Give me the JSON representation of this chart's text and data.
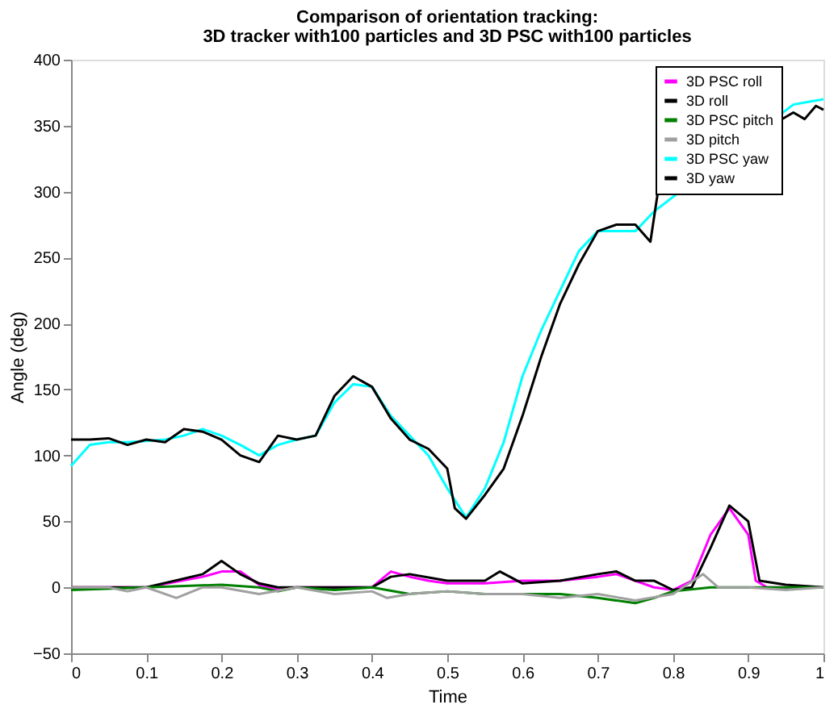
{
  "chart_data": {
    "type": "line",
    "title": "Comparison of orientation tracking:",
    "subtitle": "3D tracker with100 particles and 3D PSC with100 particles",
    "xlabel": "Time",
    "ylabel": "Angle (deg)",
    "xlim": [
      0,
      1
    ],
    "xticks": [
      0,
      0.1,
      0.2,
      0.3,
      0.4,
      0.5,
      0.6,
      0.7,
      0.8,
      0.9,
      1
    ],
    "ylim": [
      -50,
      400
    ],
    "yticks": [
      -50,
      0,
      50,
      100,
      150,
      200,
      250,
      300,
      350,
      400
    ],
    "grid": false,
    "legend": "top right",
    "line_style": "solid",
    "marker": "none",
    "series": [
      {
        "name": "3D PSC roll",
        "color": "#ff00ff",
        "x": [
          0,
          0.1,
          0.175,
          0.2,
          0.225,
          0.25,
          0.275,
          0.3,
          0.4,
          0.425,
          0.45,
          0.475,
          0.5,
          0.55,
          0.6,
          0.65,
          0.7,
          0.725,
          0.75,
          0.775,
          0.8,
          0.825,
          0.85,
          0.875,
          0.9,
          0.91,
          0.925,
          1
        ],
        "values": [
          0,
          0,
          8,
          12,
          12,
          2,
          -2,
          0,
          0,
          12,
          8,
          5,
          3,
          3,
          5,
          5,
          8,
          10,
          5,
          0,
          -2,
          5,
          40,
          60,
          40,
          5,
          0,
          0
        ]
      },
      {
        "name": "3D roll",
        "color": "#000000",
        "x": [
          0,
          0.1,
          0.175,
          0.2,
          0.225,
          0.25,
          0.275,
          0.3,
          0.4,
          0.425,
          0.45,
          0.5,
          0.55,
          0.57,
          0.6,
          0.65,
          0.7,
          0.725,
          0.75,
          0.775,
          0.8,
          0.825,
          0.85,
          0.875,
          0.9,
          0.915,
          0.95,
          1
        ],
        "values": [
          0,
          0,
          10,
          20,
          10,
          3,
          0,
          0,
          0,
          8,
          10,
          5,
          5,
          12,
          3,
          5,
          10,
          12,
          5,
          5,
          -2,
          0,
          30,
          62,
          50,
          5,
          2,
          0
        ]
      },
      {
        "name": "3D PSC pitch",
        "color": "#008000",
        "x": [
          0,
          0.1,
          0.2,
          0.25,
          0.275,
          0.3,
          0.35,
          0.4,
          0.45,
          0.5,
          0.55,
          0.6,
          0.65,
          0.7,
          0.75,
          0.775,
          0.8,
          0.85,
          0.9,
          1
        ],
        "values": [
          -2,
          0,
          2,
          0,
          -3,
          0,
          -2,
          0,
          -5,
          -3,
          -5,
          -5,
          -5,
          -8,
          -12,
          -8,
          -3,
          0,
          0,
          0
        ]
      },
      {
        "name": "3D pitch",
        "color": "#a0a0a0",
        "x": [
          0,
          0.05,
          0.075,
          0.1,
          0.14,
          0.175,
          0.2,
          0.25,
          0.3,
          0.35,
          0.4,
          0.42,
          0.45,
          0.5,
          0.55,
          0.6,
          0.65,
          0.7,
          0.75,
          0.8,
          0.84,
          0.86,
          0.9,
          0.95,
          1
        ],
        "values": [
          0,
          0,
          -3,
          0,
          -8,
          0,
          0,
          -5,
          0,
          -5,
          -3,
          -8,
          -5,
          -3,
          -5,
          -5,
          -8,
          -5,
          -10,
          -5,
          10,
          0,
          0,
          -2,
          0
        ]
      },
      {
        "name": "3D PSC yaw",
        "color": "#00ffff",
        "x": [
          0,
          0.025,
          0.05,
          0.075,
          0.1,
          0.125,
          0.15,
          0.175,
          0.2,
          0.225,
          0.25,
          0.275,
          0.3,
          0.325,
          0.35,
          0.375,
          0.4,
          0.425,
          0.45,
          0.475,
          0.5,
          0.525,
          0.55,
          0.575,
          0.6,
          0.625,
          0.65,
          0.675,
          0.7,
          0.725,
          0.75,
          0.775,
          0.96,
          0.98,
          1
        ],
        "values": [
          92,
          108,
          110,
          110,
          111,
          112,
          115,
          120,
          115,
          108,
          100,
          108,
          112,
          115,
          140,
          154,
          152,
          130,
          115,
          100,
          75,
          53,
          75,
          110,
          160,
          195,
          225,
          255,
          270,
          270,
          270,
          285,
          366,
          368,
          370
        ]
      },
      {
        "name": "3D yaw",
        "color": "#000000",
        "x": [
          0,
          0.025,
          0.05,
          0.075,
          0.1,
          0.125,
          0.15,
          0.175,
          0.2,
          0.225,
          0.25,
          0.275,
          0.3,
          0.325,
          0.35,
          0.375,
          0.4,
          0.425,
          0.45,
          0.475,
          0.5,
          0.51,
          0.525,
          0.55,
          0.575,
          0.6,
          0.625,
          0.65,
          0.675,
          0.7,
          0.725,
          0.75,
          0.77,
          0.78,
          0.96,
          0.975,
          0.99,
          1
        ],
        "values": [
          112,
          112,
          113,
          108,
          112,
          110,
          120,
          118,
          112,
          100,
          95,
          115,
          112,
          115,
          145,
          160,
          152,
          128,
          112,
          105,
          90,
          60,
          52,
          70,
          90,
          130,
          175,
          215,
          245,
          270,
          275,
          275,
          262,
          300,
          360,
          355,
          365,
          362
        ]
      }
    ]
  }
}
